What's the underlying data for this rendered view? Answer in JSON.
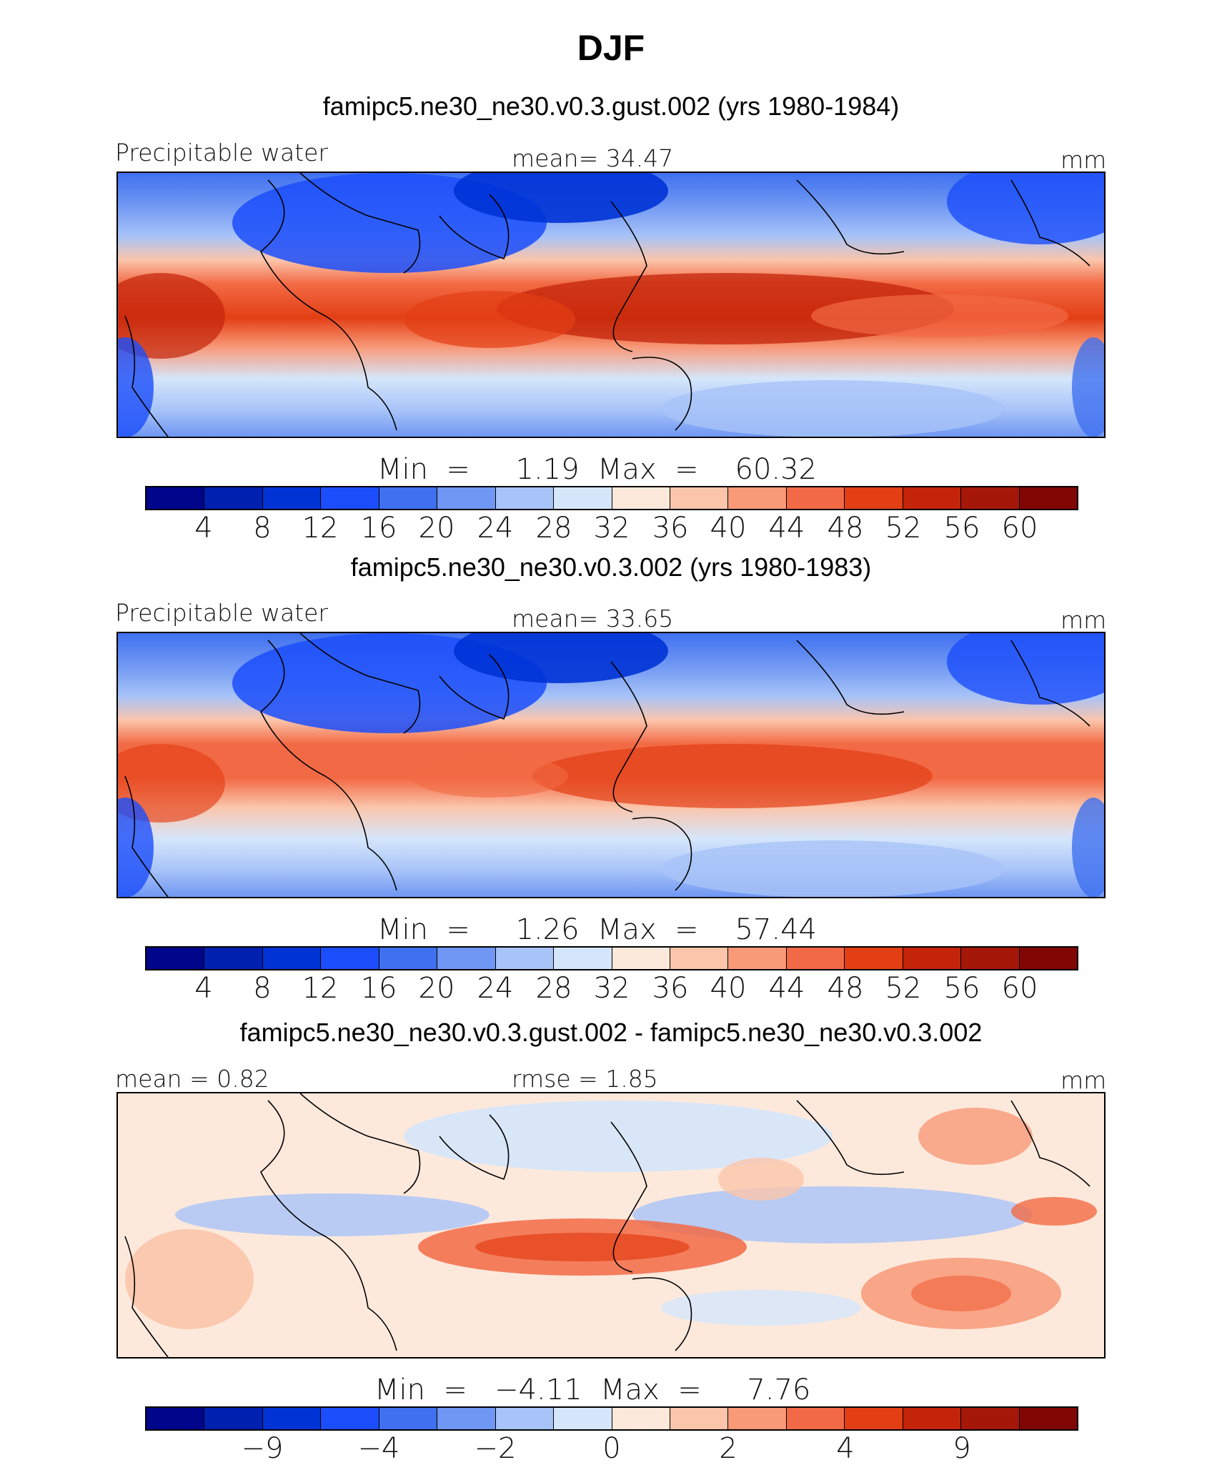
{
  "title": "DJF",
  "palette": [
    "#00068c",
    "#0020b0",
    "#0033d6",
    "#1b4dfa",
    "#3f70f0",
    "#6f97f3",
    "#a7c3f8",
    "#d5e6fb",
    "#fde9dc",
    "#fbc5ab",
    "#f89978",
    "#f26a45",
    "#e33f15",
    "#c3240a",
    "#a51708",
    "#800604"
  ],
  "panels": [
    {
      "title": "famipc5.ne30_ne30.v0.3.gust.002 (yrs 1980-1984)",
      "left_label": "Precipitable water",
      "center_label": "mean=   34.47",
      "units": "mm",
      "minmax": "Min  =     1.19  Max  =    60.32",
      "ticks": [
        "4",
        "8",
        "12",
        "16",
        "20",
        "24",
        "28",
        "32",
        "36",
        "40",
        "44",
        "48",
        "52",
        "56",
        "60"
      ]
    },
    {
      "title": "famipc5.ne30_ne30.v0.3.002 (yrs 1980-1983)",
      "left_label": "Precipitable water",
      "center_label": "mean=   33.65",
      "units": "mm",
      "minmax": "Min  =     1.26  Max  =    57.44",
      "ticks": [
        "4",
        "8",
        "12",
        "16",
        "20",
        "24",
        "28",
        "32",
        "36",
        "40",
        "44",
        "48",
        "52",
        "56",
        "60"
      ]
    },
    {
      "title": "famipc5.ne30_ne30.v0.3.gust.002 - famipc5.ne30_ne30.v0.3.002",
      "left_label": "mean =    0.82",
      "center_label": "rmse =    1.85",
      "units": "mm",
      "minmax": "Min  =   −4.11  Max  =     7.76",
      "ticks": [
        "−9",
        "−4",
        "−2",
        "0",
        "2",
        "4",
        "9"
      ]
    }
  ]
}
